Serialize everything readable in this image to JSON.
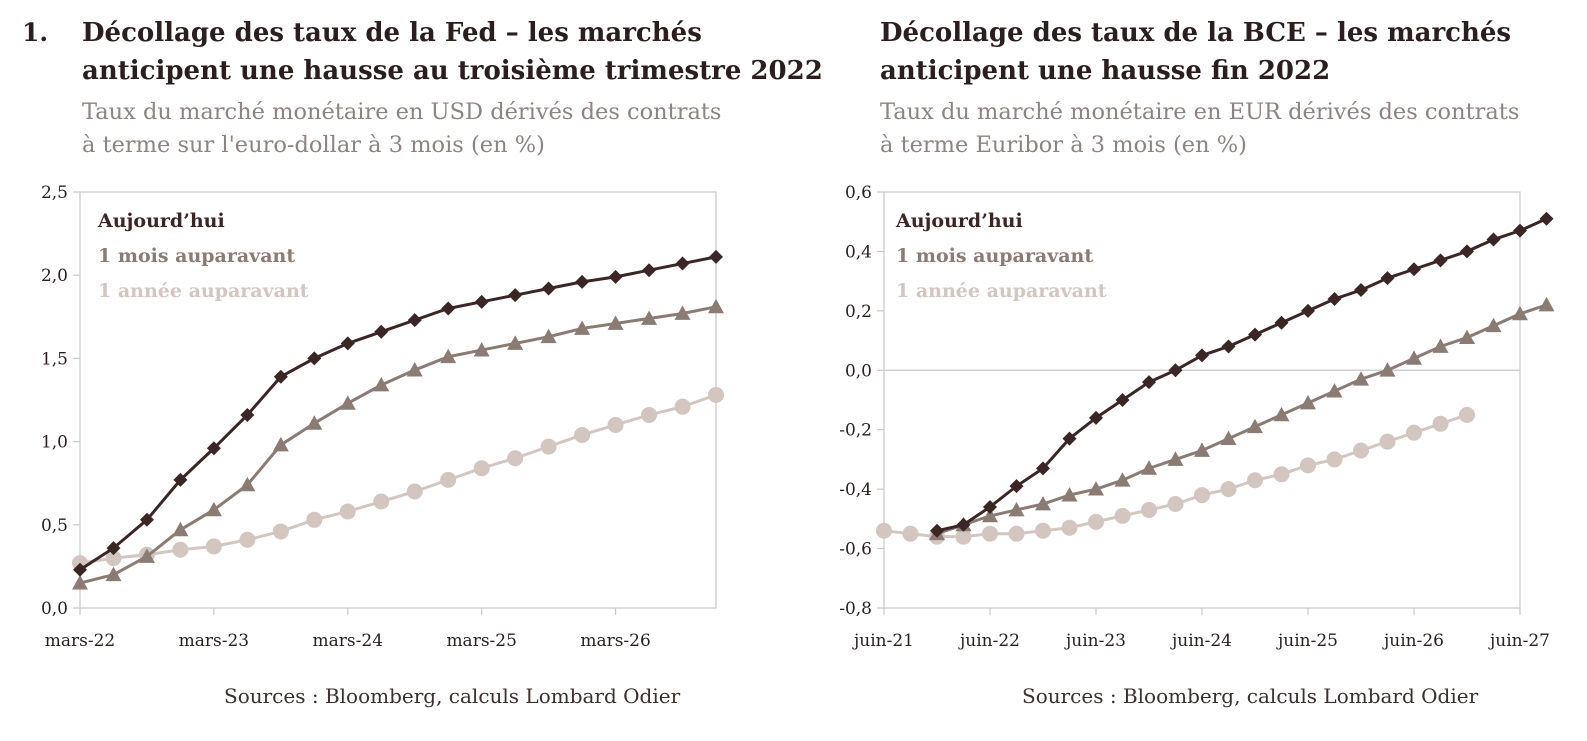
{
  "figure_number": "1.",
  "colors": {
    "today": "#3b2626",
    "month": "#8a7b74",
    "year": "#d3c6c0",
    "frame": "#c8c8c8",
    "text": "#2a1e1e",
    "subtitle": "#8d8380"
  },
  "left": {
    "title_line1": "Décollage des taux de la Fed – les marchés",
    "title_line2": "anticipent une hausse au troisième trimestre 2022",
    "subtitle_line1": "Taux du marché monétaire en USD dérivés des contrats",
    "subtitle_line2": "à terme sur l'euro-dollar à 3 mois (en %)",
    "source": "Sources : Bloomberg, calculs Lombard Odier"
  },
  "right": {
    "title_line1": "Décollage des taux de la BCE – les marchés",
    "title_line2": "anticipent une hausse fin 2022",
    "subtitle_line1": "Taux du marché monétaire en EUR dérivés des contrats",
    "subtitle_line2": "à terme Euribor à 3 mois (en %)",
    "source": "Sources : Bloomberg, calculs Lombard Odier"
  },
  "chart_data": [
    {
      "type": "line",
      "xlabel": "",
      "ylabel": "",
      "x_tick_labels": [
        "mars-22",
        "mars-23",
        "mars-24",
        "mars-25",
        "mars-26"
      ],
      "x_range_quarters": [
        0,
        19
      ],
      "y_tick_labels": [
        "0,0",
        "0,5",
        "1,0",
        "1,5",
        "2,0",
        "2,5"
      ],
      "ylim": [
        0,
        2.5
      ],
      "legend_position": "top-left",
      "series": [
        {
          "name": "Aujourd’hui",
          "color_key": "today",
          "marker": "diamond",
          "start_quarter": 0,
          "values": [
            0.23,
            0.36,
            0.53,
            0.77,
            0.96,
            1.16,
            1.39,
            1.5,
            1.59,
            1.66,
            1.73,
            1.8,
            1.84,
            1.88,
            1.92,
            1.96,
            1.99,
            2.03,
            2.07,
            2.11
          ]
        },
        {
          "name": "1 mois auparavant",
          "color_key": "month",
          "marker": "triangle",
          "start_quarter": 0,
          "values": [
            0.15,
            0.2,
            0.31,
            0.47,
            0.59,
            0.74,
            0.98,
            1.11,
            1.23,
            1.34,
            1.43,
            1.51,
            1.55,
            1.59,
            1.63,
            1.68,
            1.71,
            1.74,
            1.77,
            1.81
          ]
        },
        {
          "name": "1 année auparavant",
          "color_key": "year",
          "marker": "circle",
          "start_quarter": 0,
          "values": [
            0.27,
            0.3,
            0.32,
            0.35,
            0.37,
            0.41,
            0.46,
            0.53,
            0.58,
            0.64,
            0.7,
            0.77,
            0.84,
            0.9,
            0.97,
            1.04,
            1.1,
            1.16,
            1.21,
            1.28
          ]
        }
      ]
    },
    {
      "type": "line",
      "xlabel": "",
      "ylabel": "",
      "x_tick_labels": [
        "juin-21",
        "juin-22",
        "juin-23",
        "juin-24",
        "juin-25",
        "juin-26",
        "juin-27"
      ],
      "x_range_quarters": [
        0,
        24
      ],
      "y_tick_labels": [
        "-0,8",
        "-0,6",
        "-0,4",
        "-0,2",
        "0,0",
        "0,2",
        "0,4",
        "0,6"
      ],
      "ylim": [
        -0.8,
        0.6
      ],
      "legend_position": "top-left",
      "series": [
        {
          "name": "Aujourd’hui",
          "color_key": "today",
          "marker": "diamond",
          "start_quarter": 2,
          "values": [
            -0.54,
            -0.52,
            -0.46,
            -0.39,
            -0.33,
            -0.23,
            -0.16,
            -0.1,
            -0.04,
            0.0,
            0.05,
            0.08,
            0.12,
            0.16,
            0.2,
            0.24,
            0.27,
            0.31,
            0.34,
            0.37,
            0.4,
            0.44,
            0.47,
            0.51
          ]
        },
        {
          "name": "1 mois auparavant",
          "color_key": "month",
          "marker": "triangle",
          "start_quarter": 2,
          "values": [
            -0.55,
            -0.52,
            -0.49,
            -0.47,
            -0.45,
            -0.42,
            -0.4,
            -0.37,
            -0.33,
            -0.3,
            -0.27,
            -0.23,
            -0.19,
            -0.15,
            -0.11,
            -0.07,
            -0.03,
            0.0,
            0.04,
            0.08,
            0.11,
            0.15,
            0.19,
            0.22
          ]
        },
        {
          "name": "1 année auparavant",
          "color_key": "year",
          "marker": "circle",
          "start_quarter": 0,
          "values": [
            -0.54,
            -0.55,
            -0.56,
            -0.56,
            -0.55,
            -0.55,
            -0.54,
            -0.53,
            -0.51,
            -0.49,
            -0.47,
            -0.45,
            -0.42,
            -0.4,
            -0.37,
            -0.35,
            -0.32,
            -0.3,
            -0.27,
            -0.24,
            -0.21,
            -0.18,
            -0.15
          ]
        }
      ]
    }
  ]
}
